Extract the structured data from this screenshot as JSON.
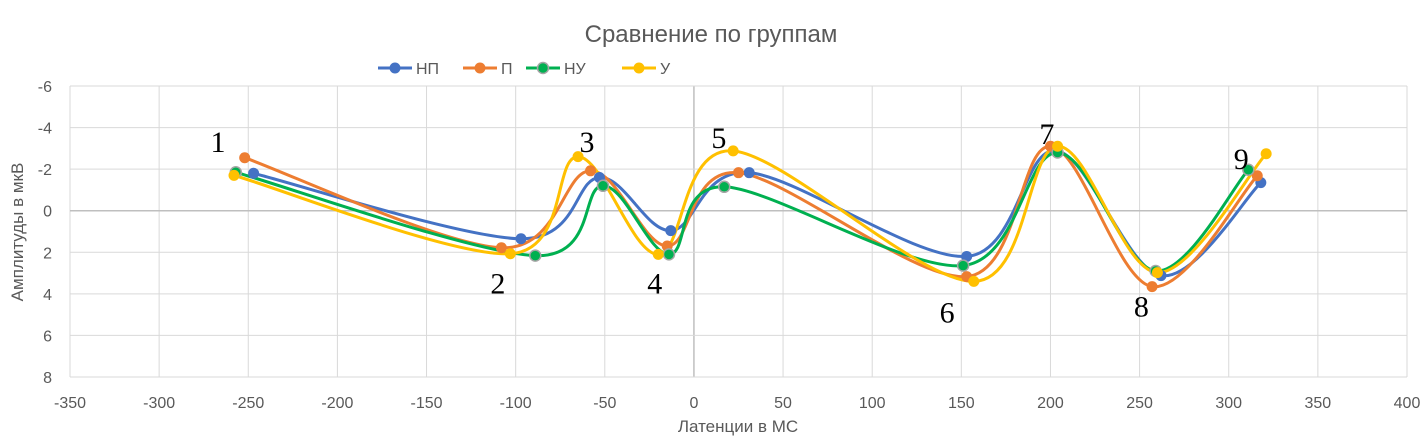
{
  "chart_data": {
    "type": "scatter",
    "subtype": "scatter-with-smooth-lines-and-markers",
    "title": "Сравнение по группам",
    "xlabel": "Латенции в МС",
    "ylabel": "Амплитуды в мкВ",
    "xlim": [
      -350,
      400
    ],
    "ylim": [
      -6,
      8
    ],
    "y_axis_reversed": true,
    "x_ticks": [
      -350,
      -300,
      -250,
      -200,
      -150,
      -100,
      -50,
      0,
      50,
      100,
      150,
      200,
      250,
      300,
      350,
      400
    ],
    "y_ticks": [
      -6,
      -4,
      -2,
      0,
      2,
      4,
      6,
      8
    ],
    "grid": true,
    "legend_position": "top",
    "legend": [
      "НП",
      "П",
      "НУ",
      "У"
    ],
    "series": [
      {
        "name": "НП",
        "color": "#4472C4",
        "x": [
          -247,
          -97,
          -53,
          -13,
          31,
          153,
          203,
          262,
          318
        ],
        "y": [
          -1.8,
          1.35,
          -1.6,
          0.96,
          -1.83,
          2.2,
          -2.9,
          3.12,
          -1.35
        ]
      },
      {
        "name": "П",
        "color": "#ED7D31",
        "x": [
          -252,
          -108,
          -58,
          -15,
          25,
          153,
          200,
          257,
          316
        ],
        "y": [
          -2.55,
          1.78,
          -1.92,
          1.7,
          -1.83,
          3.17,
          -3.1,
          3.65,
          -1.68
        ]
      },
      {
        "name": "НУ",
        "color": "#00B050",
        "x": [
          -257,
          -89,
          -51,
          -14,
          17,
          151,
          204,
          259,
          311
        ],
        "y": [
          -1.85,
          2.16,
          -1.2,
          2.1,
          -1.15,
          2.64,
          -2.8,
          2.9,
          -1.97
        ]
      },
      {
        "name": "У",
        "color": "#FFC000",
        "x": [
          -258,
          -103,
          -65,
          -20,
          22,
          157,
          204,
          260,
          321
        ],
        "y": [
          -1.7,
          2.07,
          -2.6,
          2.1,
          -2.88,
          3.4,
          -3.1,
          2.98,
          -2.74
        ]
      }
    ],
    "annotations": [
      {
        "text": "1",
        "x": -267,
        "y": -3.3
      },
      {
        "text": "2",
        "x": -110,
        "y": 3.5
      },
      {
        "text": "3",
        "x": -60,
        "y": -3.3
      },
      {
        "text": "4",
        "x": -22,
        "y": 3.5
      },
      {
        "text": "5",
        "x": 14,
        "y": -3.5
      },
      {
        "text": "6",
        "x": 142,
        "y": 4.9
      },
      {
        "text": "7",
        "x": 198,
        "y": -3.7
      },
      {
        "text": "8",
        "x": 251,
        "y": 4.6
      },
      {
        "text": "9",
        "x": 307,
        "y": -2.5
      }
    ]
  }
}
